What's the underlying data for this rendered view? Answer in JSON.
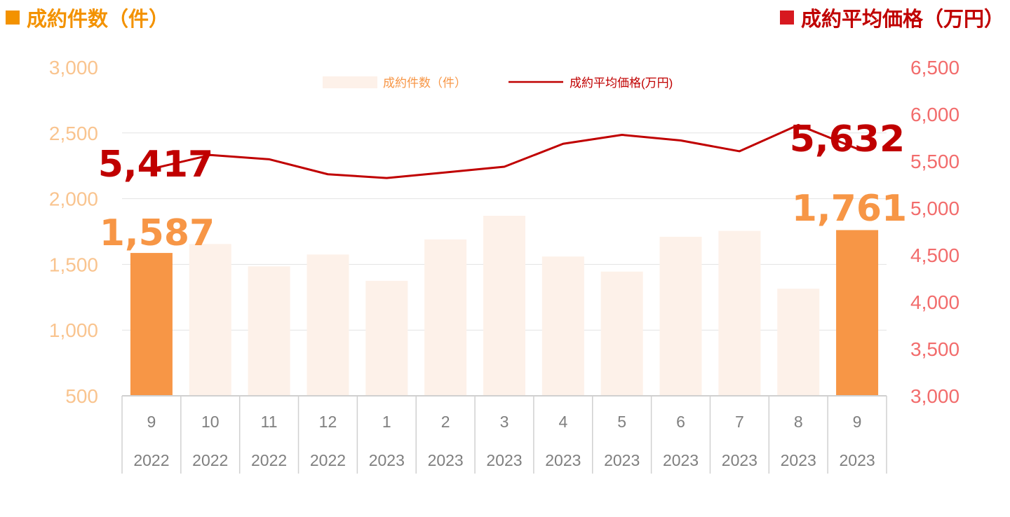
{
  "header": {
    "left_title": "成約件数（件）",
    "right_title": "成約平均価格（万円）"
  },
  "colors": {
    "bar_highlight": "#f79646",
    "bar_normal": "#fdf1e9",
    "line": "#c00000",
    "left_axis_text": "#f9c48f",
    "right_axis_text": "#f26c6c",
    "left_header": "#f39200",
    "right_header": "#d71920"
  },
  "chart_data": {
    "type": "bar+line",
    "categories": [
      {
        "month": "9",
        "year": "2022"
      },
      {
        "month": "10",
        "year": "2022"
      },
      {
        "month": "11",
        "year": "2022"
      },
      {
        "month": "12",
        "year": "2022"
      },
      {
        "month": "1",
        "year": "2023"
      },
      {
        "month": "2",
        "year": "2023"
      },
      {
        "month": "3",
        "year": "2023"
      },
      {
        "month": "4",
        "year": "2023"
      },
      {
        "month": "5",
        "year": "2023"
      },
      {
        "month": "6",
        "year": "2023"
      },
      {
        "month": "7",
        "year": "2023"
      },
      {
        "month": "8",
        "year": "2023"
      },
      {
        "month": "9",
        "year": "2023"
      }
    ],
    "series": [
      {
        "name": "成約件数(件)",
        "kind": "bar",
        "axis": "left",
        "values": [
          1587,
          1655,
          1485,
          1575,
          1375,
          1690,
          1870,
          1560,
          1445,
          1710,
          1755,
          1315,
          1761
        ],
        "highlight_indices": [
          0,
          12
        ]
      },
      {
        "name": "成約平均価格(万円)",
        "kind": "line",
        "axis": "right",
        "values": [
          5417,
          5565,
          5520,
          5360,
          5320,
          5380,
          5440,
          5685,
          5780,
          5720,
          5605,
          5885,
          5632
        ]
      }
    ],
    "y_left": {
      "min": 500,
      "max": 3000,
      "ticks": [
        "500",
        "1,000",
        "1,500",
        "2,000",
        "2,500",
        "3,000"
      ],
      "tick_values": [
        500,
        1000,
        1500,
        2000,
        2500,
        3000
      ]
    },
    "y_right": {
      "min": 3000,
      "max": 6500,
      "ticks": [
        "3,000",
        "3,500",
        "4,000",
        "4,500",
        "5,000",
        "5,500",
        "6,000",
        "6,500"
      ],
      "tick_values": [
        3000,
        3500,
        4000,
        4500,
        5000,
        5500,
        6000,
        6500
      ]
    },
    "legend": {
      "placement": "top-center",
      "bar_label": "成約件数（件）",
      "line_label": "成約平均価格(万円)"
    },
    "grid": true,
    "data_labels": {
      "bar_first": "1,587",
      "bar_last": "1,761",
      "line_first": "5,417",
      "line_last": "5,632"
    }
  }
}
